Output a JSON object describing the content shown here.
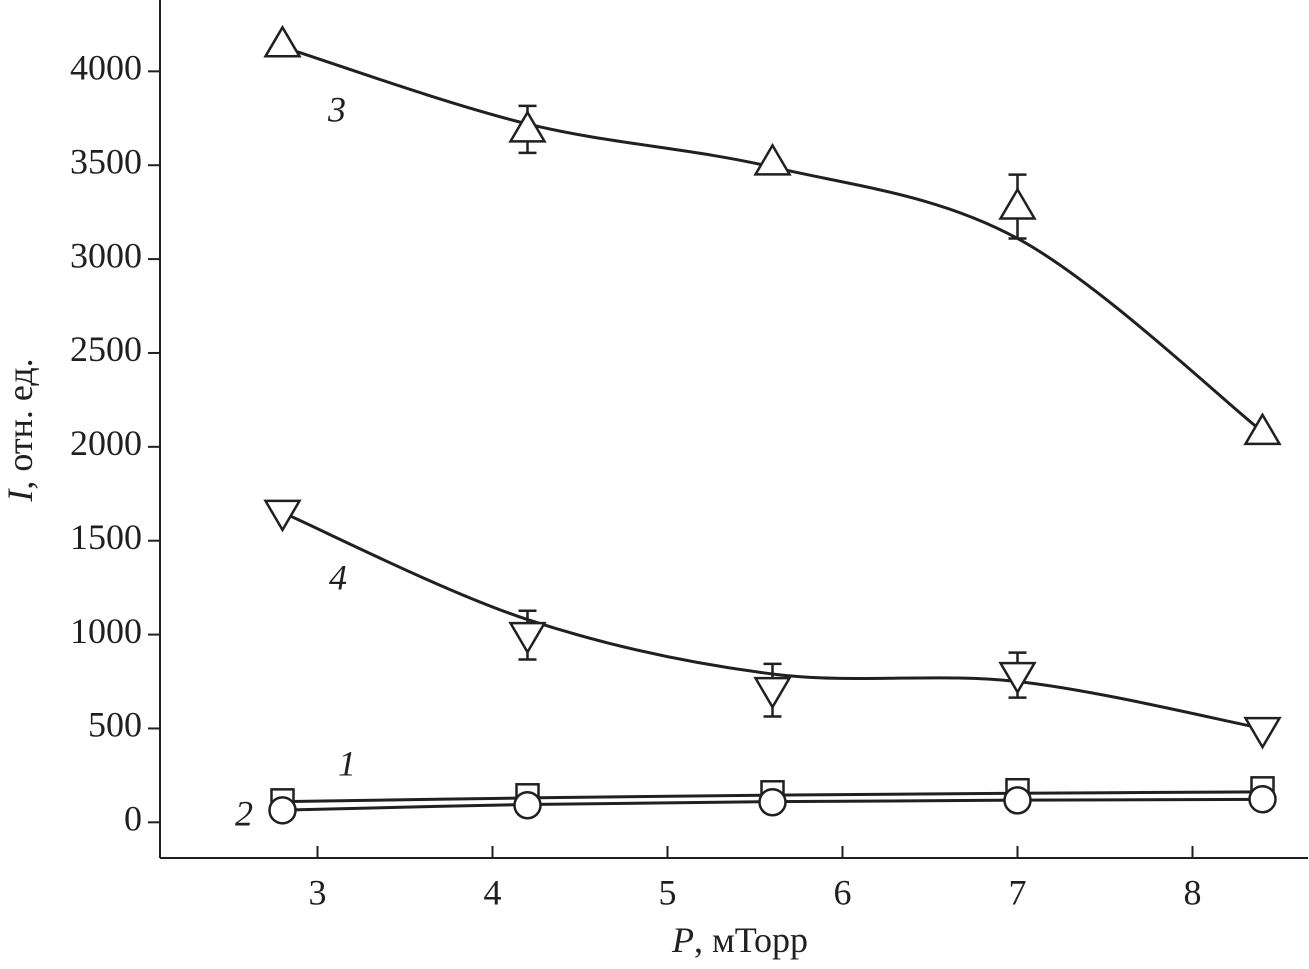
{
  "chart_data": {
    "type": "line",
    "x_label_var": "P",
    "x_label_unit": ", мТорр",
    "y_label_var": "I",
    "y_label_unit": ", отн. ед.",
    "x": [
      2.8,
      4.2,
      5.6,
      7.0,
      8.4
    ],
    "xlim": [
      2.1,
      8.66
    ],
    "xticks": [
      3,
      4,
      5,
      6,
      7,
      8
    ],
    "ylim": [
      -190,
      4380
    ],
    "yticks": [
      0,
      500,
      1000,
      1500,
      2000,
      2500,
      3000,
      3500,
      4000
    ],
    "series": [
      {
        "name": "1",
        "marker": "square",
        "color": "#231f20",
        "values": [
          117,
          144,
          160,
          171,
          181
        ],
        "errors": [
          null,
          null,
          null,
          null,
          null
        ],
        "fit": [
          110,
          130,
          145,
          155,
          162
        ]
      },
      {
        "name": "2",
        "marker": "circle",
        "color": "#231f20",
        "values": [
          64,
          91,
          107,
          117,
          123
        ],
        "errors": [
          null,
          null,
          null,
          null,
          null
        ],
        "fit": [
          65,
          95,
          110,
          118,
          122
        ]
      },
      {
        "name": "3",
        "marker": "triangle-up",
        "color": "#231f20",
        "values": [
          4144,
          3691,
          3515,
          3280,
          2080
        ],
        "errors": [
          null,
          125,
          null,
          170,
          null
        ],
        "fit": [
          4130,
          3720,
          3490,
          3110,
          2080
        ]
      },
      {
        "name": "4",
        "marker": "triangle-down",
        "color": "#231f20",
        "values": [
          1648,
          997,
          704,
          784,
          491
        ],
        "errors": [
          null,
          130,
          140,
          120,
          null
        ],
        "fit": [
          1650,
          1080,
          790,
          750,
          500
        ]
      }
    ]
  }
}
